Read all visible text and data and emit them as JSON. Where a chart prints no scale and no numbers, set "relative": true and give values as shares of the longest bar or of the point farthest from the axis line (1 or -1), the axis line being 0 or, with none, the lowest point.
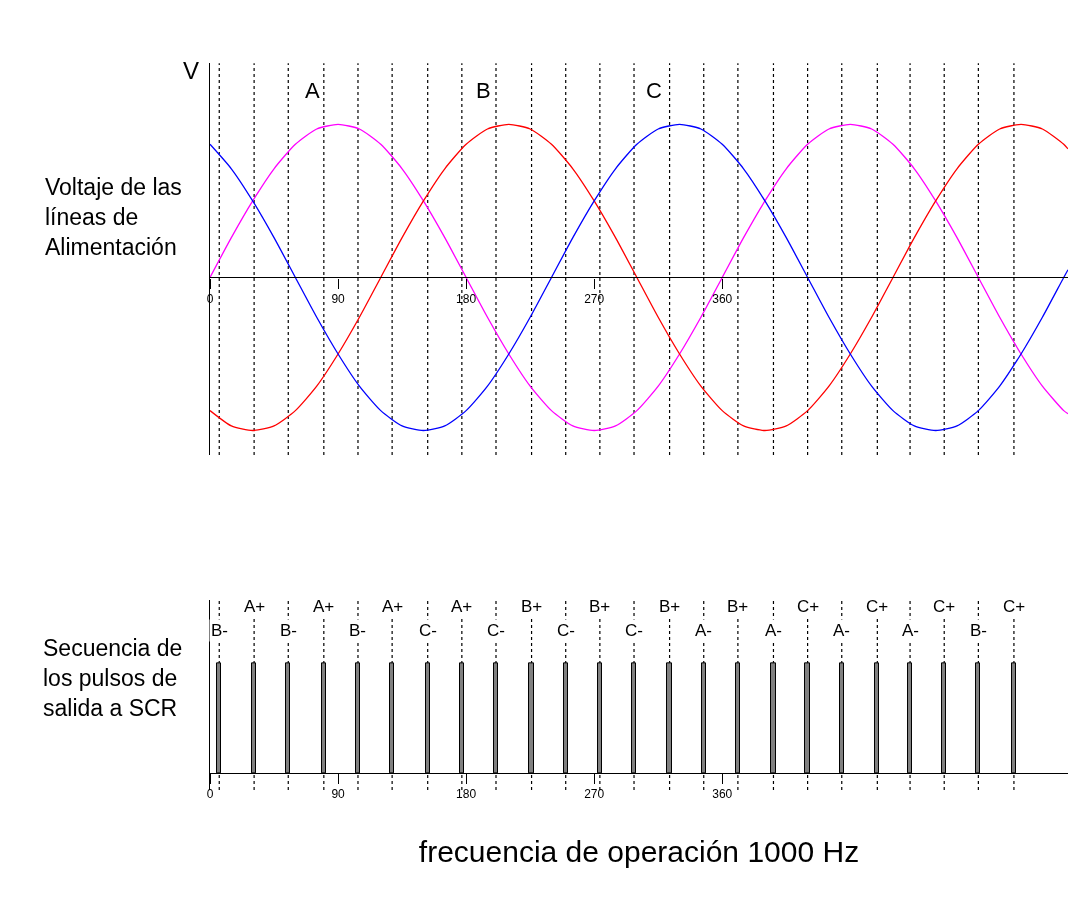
{
  "chart_data": [
    {
      "type": "line",
      "relative": true,
      "ylabel": "Voltaje de las líneas de Alimentación",
      "annotations": [
        "V"
      ],
      "xlim": [
        0,
        603
      ],
      "xticks": [
        0,
        90,
        180,
        270,
        360
      ],
      "grid": false,
      "legend": false,
      "marker": "none",
      "line_style": "solid",
      "x": [
        0,
        15,
        30,
        45,
        60,
        75,
        90,
        105,
        120,
        135,
        150,
        165,
        180,
        195,
        210,
        225,
        240,
        255,
        270,
        285,
        300,
        315,
        330,
        345,
        360,
        375,
        390,
        405,
        420,
        435,
        450,
        465,
        480,
        495,
        510,
        525,
        540,
        555,
        570,
        585,
        600,
        603
      ],
      "series": [
        {
          "name": "A",
          "color": "#ff00ff",
          "values": [
            0,
            0.26,
            0.5,
            0.71,
            0.87,
            0.97,
            1,
            0.97,
            0.87,
            0.71,
            0.5,
            0.26,
            0,
            -0.26,
            -0.5,
            -0.71,
            -0.87,
            -0.97,
            -1,
            -0.97,
            -0.87,
            -0.71,
            -0.5,
            -0.26,
            0,
            0.26,
            0.5,
            0.71,
            0.87,
            0.97,
            1,
            0.97,
            0.87,
            0.71,
            0.5,
            0.26,
            0,
            -0.26,
            -0.5,
            -0.71,
            -0.87,
            -0.89
          ]
        },
        {
          "name": "B",
          "color": "#ff0000",
          "values": [
            -0.87,
            -0.97,
            -1,
            -0.97,
            -0.87,
            -0.71,
            -0.5,
            -0.26,
            0,
            0.26,
            0.5,
            0.71,
            0.87,
            0.97,
            1,
            0.97,
            0.87,
            0.71,
            0.5,
            0.26,
            0,
            -0.26,
            -0.5,
            -0.71,
            -0.87,
            -0.97,
            -1,
            -0.97,
            -0.87,
            -0.71,
            -0.5,
            -0.26,
            0,
            0.26,
            0.5,
            0.71,
            0.87,
            0.97,
            1,
            0.97,
            0.87,
            0.84
          ]
        },
        {
          "name": "C",
          "color": "#0000ff",
          "values": [
            0.87,
            0.71,
            0.5,
            0.26,
            0,
            -0.26,
            -0.5,
            -0.71,
            -0.87,
            -0.97,
            -1,
            -0.97,
            -0.87,
            -0.71,
            -0.5,
            -0.26,
            0,
            0.26,
            0.5,
            0.71,
            0.87,
            0.97,
            1,
            0.97,
            0.87,
            0.71,
            0.5,
            0.26,
            0,
            -0.26,
            -0.5,
            -0.71,
            -0.87,
            -0.97,
            -1,
            -0.97,
            -0.87,
            -0.71,
            -0.5,
            -0.26,
            0,
            0.05
          ]
        }
      ],
      "ref_lines": [
        {
          "axis": "x",
          "value": 6.5,
          "color": "#000000",
          "line_style": "dotted"
        },
        {
          "axis": "x",
          "value": 31,
          "color": "#000000",
          "line_style": "dotted"
        },
        {
          "axis": "x",
          "value": 55,
          "color": "#000000",
          "line_style": "dotted"
        },
        {
          "axis": "x",
          "value": 80,
          "color": "#000000",
          "line_style": "dotted"
        },
        {
          "axis": "x",
          "value": 104,
          "color": "#000000",
          "line_style": "dotted"
        },
        {
          "axis": "x",
          "value": 128,
          "color": "#000000",
          "line_style": "dotted"
        },
        {
          "axis": "x",
          "value": 153,
          "color": "#000000",
          "line_style": "dotted"
        },
        {
          "axis": "x",
          "value": 177,
          "color": "#000000",
          "line_style": "dotted"
        },
        {
          "axis": "x",
          "value": 201,
          "color": "#000000",
          "line_style": "dotted"
        },
        {
          "axis": "x",
          "value": 226,
          "color": "#000000",
          "line_style": "dotted"
        },
        {
          "axis": "x",
          "value": 250,
          "color": "#000000",
          "line_style": "dotted"
        },
        {
          "axis": "x",
          "value": 274,
          "color": "#000000",
          "line_style": "dotted"
        },
        {
          "axis": "x",
          "value": 298,
          "color": "#000000",
          "line_style": "dotted"
        },
        {
          "axis": "x",
          "value": 323,
          "color": "#000000",
          "line_style": "dotted"
        },
        {
          "axis": "x",
          "value": 347,
          "color": "#000000",
          "line_style": "dotted"
        },
        {
          "axis": "x",
          "value": 371,
          "color": "#000000",
          "line_style": "dotted"
        },
        {
          "axis": "x",
          "value": 396,
          "color": "#000000",
          "line_style": "dotted"
        },
        {
          "axis": "x",
          "value": 420,
          "color": "#000000",
          "line_style": "dotted"
        },
        {
          "axis": "x",
          "value": 444,
          "color": "#000000",
          "line_style": "dotted"
        },
        {
          "axis": "x",
          "value": 469,
          "color": "#000000",
          "line_style": "dotted"
        },
        {
          "axis": "x",
          "value": 492,
          "color": "#000000",
          "line_style": "dotted"
        },
        {
          "axis": "x",
          "value": 516,
          "color": "#000000",
          "line_style": "dotted"
        },
        {
          "axis": "x",
          "value": 540,
          "color": "#000000",
          "line_style": "dotted"
        },
        {
          "axis": "x",
          "value": 565,
          "color": "#000000",
          "line_style": "dotted"
        }
      ]
    },
    {
      "type": "bar",
      "relative": true,
      "ylabel": "Secuencia de los pulsos de salida a SCR",
      "xlabel": "frecuencia de operación 1000 Hz",
      "xlim": [
        0,
        603
      ],
      "xticks": [
        0,
        90,
        180,
        270,
        360
      ],
      "grid": false,
      "legend": false,
      "color": "#808080",
      "x": [
        6.5,
        31,
        55,
        80,
        104,
        128,
        153,
        177,
        201,
        226,
        250,
        274,
        298,
        323,
        347,
        371,
        396,
        420,
        444,
        469,
        492,
        516,
        540,
        565
      ],
      "values": [
        1,
        1,
        1,
        1,
        1,
        1,
        1,
        1,
        1,
        1,
        1,
        1,
        1,
        1,
        1,
        1,
        1,
        1,
        1,
        1,
        1,
        1,
        1,
        1
      ],
      "annotations": [
        {
          "text": "B-",
          "x": 6.5,
          "y": 1.3
        },
        {
          "text": "A+",
          "x": 31,
          "y": 1.51
        },
        {
          "text": "B-",
          "x": 55,
          "y": 1.3
        },
        {
          "text": "A+",
          "x": 80,
          "y": 1.51
        },
        {
          "text": "B-",
          "x": 104,
          "y": 1.3
        },
        {
          "text": "A+",
          "x": 128,
          "y": 1.51
        },
        {
          "text": "C-",
          "x": 153,
          "y": 1.3
        },
        {
          "text": "A+",
          "x": 177,
          "y": 1.51
        },
        {
          "text": "C-",
          "x": 201,
          "y": 1.3
        },
        {
          "text": "B+",
          "x": 226,
          "y": 1.51
        },
        {
          "text": "C-",
          "x": 250,
          "y": 1.3
        },
        {
          "text": "B+",
          "x": 274,
          "y": 1.51
        },
        {
          "text": "C-",
          "x": 298,
          "y": 1.3
        },
        {
          "text": "B+",
          "x": 323,
          "y": 1.51
        },
        {
          "text": "A-",
          "x": 347,
          "y": 1.3
        },
        {
          "text": "B+",
          "x": 371,
          "y": 1.51
        },
        {
          "text": "A-",
          "x": 396,
          "y": 1.3
        },
        {
          "text": "C+",
          "x": 420,
          "y": 1.51
        },
        {
          "text": "A-",
          "x": 444,
          "y": 1.3
        },
        {
          "text": "C+",
          "x": 469,
          "y": 1.51
        },
        {
          "text": "A-",
          "x": 492,
          "y": 1.3
        },
        {
          "text": "C+",
          "x": 516,
          "y": 1.51
        },
        {
          "text": "B-",
          "x": 540,
          "y": 1.3
        },
        {
          "text": "C+",
          "x": 565,
          "y": 1.51
        }
      ],
      "ref_lines": [
        {
          "axis": "x",
          "value": 6.5,
          "color": "#000000",
          "line_style": "dotted"
        },
        {
          "axis": "x",
          "value": 31,
          "color": "#000000",
          "line_style": "dotted"
        },
        {
          "axis": "x",
          "value": 55,
          "color": "#000000",
          "line_style": "dotted"
        },
        {
          "axis": "x",
          "value": 80,
          "color": "#000000",
          "line_style": "dotted"
        },
        {
          "axis": "x",
          "value": 104,
          "color": "#000000",
          "line_style": "dotted"
        },
        {
          "axis": "x",
          "value": 128,
          "color": "#000000",
          "line_style": "dotted"
        },
        {
          "axis": "x",
          "value": 153,
          "color": "#000000",
          "line_style": "dotted"
        },
        {
          "axis": "x",
          "value": 177,
          "color": "#000000",
          "line_style": "dotted"
        },
        {
          "axis": "x",
          "value": 201,
          "color": "#000000",
          "line_style": "dotted"
        },
        {
          "axis": "x",
          "value": 226,
          "color": "#000000",
          "line_style": "dotted"
        },
        {
          "axis": "x",
          "value": 250,
          "color": "#000000",
          "line_style": "dotted"
        },
        {
          "axis": "x",
          "value": 274,
          "color": "#000000",
          "line_style": "dotted"
        },
        {
          "axis": "x",
          "value": 298,
          "color": "#000000",
          "line_style": "dotted"
        },
        {
          "axis": "x",
          "value": 323,
          "color": "#000000",
          "line_style": "dotted"
        },
        {
          "axis": "x",
          "value": 347,
          "color": "#000000",
          "line_style": "dotted"
        },
        {
          "axis": "x",
          "value": 371,
          "color": "#000000",
          "line_style": "dotted"
        },
        {
          "axis": "x",
          "value": 396,
          "color": "#000000",
          "line_style": "dotted"
        },
        {
          "axis": "x",
          "value": 420,
          "color": "#000000",
          "line_style": "dotted"
        },
        {
          "axis": "x",
          "value": 444,
          "color": "#000000",
          "line_style": "dotted"
        },
        {
          "axis": "x",
          "value": 469,
          "color": "#000000",
          "line_style": "dotted"
        },
        {
          "axis": "x",
          "value": 492,
          "color": "#000000",
          "line_style": "dotted"
        },
        {
          "axis": "x",
          "value": 516,
          "color": "#000000",
          "line_style": "dotted"
        },
        {
          "axis": "x",
          "value": 540,
          "color": "#000000",
          "line_style": "dotted"
        },
        {
          "axis": "x",
          "value": 565,
          "color": "#000000",
          "line_style": "dotted"
        }
      ]
    }
  ]
}
